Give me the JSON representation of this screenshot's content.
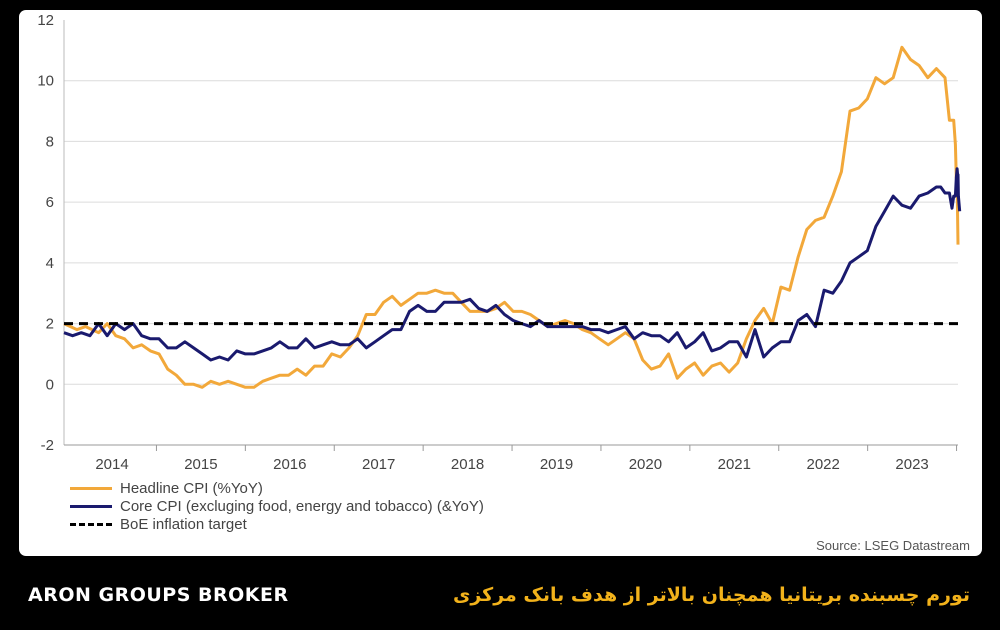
{
  "footer": {
    "brand": "ARON GROUPS BROKER",
    "title": "تورم چسبنده بریتانیا همچنان بالاتر از هدف بانک مرکزی"
  },
  "source": "Source: LSEG Datastream",
  "colors": {
    "headline": "#f2a83a",
    "core": "#1a1a6e",
    "target": "#000000",
    "grid": "#dcdcdc"
  },
  "chart_data": {
    "type": "line",
    "title": "",
    "xlabel": "",
    "ylabel": "",
    "ylim": [
      -2,
      12
    ],
    "yticks": [
      -2,
      0,
      2,
      4,
      6,
      8,
      10,
      12
    ],
    "xlim": [
      2013.6,
      2023.95
    ],
    "xtick_labels": [
      "2014",
      "2015",
      "2016",
      "2017",
      "2018",
      "2019",
      "2020",
      "2021",
      "2022",
      "2023"
    ],
    "grid": "horizontal",
    "legend": "bottom-left",
    "series": [
      {
        "name": "Headline CPI (%YoY)",
        "style": "solid",
        "points": [
          [
            2013.6,
            2.0
          ],
          [
            2013.75,
            1.8
          ],
          [
            2013.85,
            1.9
          ],
          [
            2014.0,
            1.7
          ],
          [
            2014.1,
            2.0
          ],
          [
            2014.2,
            1.6
          ],
          [
            2014.3,
            1.5
          ],
          [
            2014.4,
            1.2
          ],
          [
            2014.5,
            1.3
          ],
          [
            2014.6,
            1.1
          ],
          [
            2014.7,
            1.0
          ],
          [
            2014.8,
            0.5
          ],
          [
            2014.9,
            0.3
          ],
          [
            2015.0,
            0.0
          ],
          [
            2015.1,
            0.0
          ],
          [
            2015.2,
            -0.1
          ],
          [
            2015.3,
            0.1
          ],
          [
            2015.4,
            0.0
          ],
          [
            2015.5,
            0.1
          ],
          [
            2015.6,
            0.0
          ],
          [
            2015.7,
            -0.1
          ],
          [
            2015.8,
            -0.1
          ],
          [
            2015.9,
            0.1
          ],
          [
            2016.0,
            0.2
          ],
          [
            2016.1,
            0.3
          ],
          [
            2016.2,
            0.3
          ],
          [
            2016.3,
            0.5
          ],
          [
            2016.4,
            0.3
          ],
          [
            2016.5,
            0.6
          ],
          [
            2016.6,
            0.6
          ],
          [
            2016.7,
            1.0
          ],
          [
            2016.8,
            0.9
          ],
          [
            2016.9,
            1.2
          ],
          [
            2017.0,
            1.6
          ],
          [
            2017.1,
            2.3
          ],
          [
            2017.2,
            2.3
          ],
          [
            2017.3,
            2.7
          ],
          [
            2017.4,
            2.9
          ],
          [
            2017.5,
            2.6
          ],
          [
            2017.6,
            2.8
          ],
          [
            2017.7,
            3.0
          ],
          [
            2017.8,
            3.0
          ],
          [
            2017.9,
            3.1
          ],
          [
            2018.0,
            3.0
          ],
          [
            2018.1,
            3.0
          ],
          [
            2018.2,
            2.7
          ],
          [
            2018.3,
            2.4
          ],
          [
            2018.5,
            2.4
          ],
          [
            2018.6,
            2.5
          ],
          [
            2018.7,
            2.7
          ],
          [
            2018.8,
            2.4
          ],
          [
            2018.9,
            2.4
          ],
          [
            2019.0,
            2.3
          ],
          [
            2019.1,
            2.1
          ],
          [
            2019.2,
            1.9
          ],
          [
            2019.3,
            2.0
          ],
          [
            2019.4,
            2.1
          ],
          [
            2019.5,
            2.0
          ],
          [
            2019.6,
            1.8
          ],
          [
            2019.7,
            1.7
          ],
          [
            2019.8,
            1.5
          ],
          [
            2019.9,
            1.3
          ],
          [
            2020.0,
            1.5
          ],
          [
            2020.1,
            1.7
          ],
          [
            2020.2,
            1.5
          ],
          [
            2020.3,
            0.8
          ],
          [
            2020.4,
            0.5
          ],
          [
            2020.5,
            0.6
          ],
          [
            2020.6,
            1.0
          ],
          [
            2020.7,
            0.2
          ],
          [
            2020.8,
            0.5
          ],
          [
            2020.9,
            0.7
          ],
          [
            2021.0,
            0.3
          ],
          [
            2021.1,
            0.6
          ],
          [
            2021.2,
            0.7
          ],
          [
            2021.3,
            0.4
          ],
          [
            2021.4,
            0.7
          ],
          [
            2021.5,
            1.5
          ],
          [
            2021.6,
            2.1
          ],
          [
            2021.7,
            2.5
          ],
          [
            2021.8,
            2.0
          ],
          [
            2021.9,
            3.2
          ],
          [
            2022.0,
            3.1
          ],
          [
            2022.1,
            4.2
          ],
          [
            2022.2,
            5.1
          ],
          [
            2022.3,
            5.4
          ],
          [
            2022.4,
            5.5
          ],
          [
            2022.5,
            6.2
          ],
          [
            2022.6,
            7.0
          ],
          [
            2022.7,
            9.0
          ],
          [
            2022.8,
            9.1
          ],
          [
            2022.9,
            9.4
          ],
          [
            2023.0,
            10.1
          ],
          [
            2023.1,
            9.9
          ],
          [
            2023.2,
            10.1
          ],
          [
            2023.3,
            11.1
          ],
          [
            2023.4,
            10.7
          ],
          [
            2023.5,
            10.5
          ],
          [
            2023.6,
            10.1
          ],
          [
            2023.7,
            10.4
          ],
          [
            2023.8,
            10.1
          ],
          [
            2023.85,
            8.7
          ],
          [
            2023.9,
            8.7
          ],
          [
            2023.92,
            7.9
          ],
          [
            2023.93,
            6.8
          ],
          [
            2023.94,
            6.7
          ],
          [
            2023.95,
            4.6
          ]
        ]
      },
      {
        "name": "Core CPI (excluging food, energy and tobacco) (&YoY)",
        "style": "solid",
        "points": [
          [
            2013.6,
            1.7
          ],
          [
            2013.7,
            1.6
          ],
          [
            2013.8,
            1.7
          ],
          [
            2013.9,
            1.6
          ],
          [
            2014.0,
            2.0
          ],
          [
            2014.1,
            1.6
          ],
          [
            2014.2,
            2.0
          ],
          [
            2014.3,
            1.8
          ],
          [
            2014.4,
            2.0
          ],
          [
            2014.5,
            1.6
          ],
          [
            2014.6,
            1.5
          ],
          [
            2014.7,
            1.5
          ],
          [
            2014.8,
            1.2
          ],
          [
            2014.9,
            1.2
          ],
          [
            2015.0,
            1.4
          ],
          [
            2015.1,
            1.2
          ],
          [
            2015.2,
            1.0
          ],
          [
            2015.3,
            0.8
          ],
          [
            2015.4,
            0.9
          ],
          [
            2015.5,
            0.8
          ],
          [
            2015.6,
            1.1
          ],
          [
            2015.7,
            1.0
          ],
          [
            2015.8,
            1.0
          ],
          [
            2015.9,
            1.1
          ],
          [
            2016.0,
            1.2
          ],
          [
            2016.1,
            1.4
          ],
          [
            2016.2,
            1.2
          ],
          [
            2016.3,
            1.2
          ],
          [
            2016.4,
            1.5
          ],
          [
            2016.5,
            1.2
          ],
          [
            2016.6,
            1.3
          ],
          [
            2016.7,
            1.4
          ],
          [
            2016.8,
            1.3
          ],
          [
            2016.9,
            1.3
          ],
          [
            2017.0,
            1.5
          ],
          [
            2017.1,
            1.2
          ],
          [
            2017.2,
            1.4
          ],
          [
            2017.3,
            1.6
          ],
          [
            2017.4,
            1.8
          ],
          [
            2017.5,
            1.8
          ],
          [
            2017.6,
            2.4
          ],
          [
            2017.7,
            2.6
          ],
          [
            2017.8,
            2.4
          ],
          [
            2017.9,
            2.4
          ],
          [
            2018.0,
            2.7
          ],
          [
            2018.1,
            2.7
          ],
          [
            2018.2,
            2.7
          ],
          [
            2018.3,
            2.8
          ],
          [
            2018.4,
            2.5
          ],
          [
            2018.5,
            2.4
          ],
          [
            2018.6,
            2.6
          ],
          [
            2018.7,
            2.3
          ],
          [
            2018.8,
            2.1
          ],
          [
            2018.9,
            2.0
          ],
          [
            2019.0,
            1.9
          ],
          [
            2019.1,
            2.1
          ],
          [
            2019.2,
            1.9
          ],
          [
            2019.3,
            1.9
          ],
          [
            2019.4,
            1.9
          ],
          [
            2019.5,
            1.9
          ],
          [
            2019.6,
            1.9
          ],
          [
            2019.7,
            1.8
          ],
          [
            2019.8,
            1.8
          ],
          [
            2019.9,
            1.7
          ],
          [
            2020.0,
            1.8
          ],
          [
            2020.1,
            1.9
          ],
          [
            2020.2,
            1.5
          ],
          [
            2020.3,
            1.7
          ],
          [
            2020.4,
            1.6
          ],
          [
            2020.5,
            1.6
          ],
          [
            2020.6,
            1.4
          ],
          [
            2020.7,
            1.7
          ],
          [
            2020.8,
            1.2
          ],
          [
            2020.9,
            1.4
          ],
          [
            2021.0,
            1.7
          ],
          [
            2021.1,
            1.1
          ],
          [
            2021.2,
            1.2
          ],
          [
            2021.3,
            1.4
          ],
          [
            2021.4,
            1.4
          ],
          [
            2021.5,
            0.9
          ],
          [
            2021.6,
            1.8
          ],
          [
            2021.7,
            0.9
          ],
          [
            2021.8,
            1.2
          ],
          [
            2021.9,
            1.4
          ],
          [
            2022.0,
            1.4
          ],
          [
            2022.1,
            2.1
          ],
          [
            2022.2,
            2.3
          ],
          [
            2022.3,
            1.9
          ],
          [
            2022.4,
            3.1
          ],
          [
            2022.5,
            3.0
          ],
          [
            2022.6,
            3.4
          ],
          [
            2022.7,
            4.0
          ],
          [
            2022.8,
            4.2
          ],
          [
            2022.9,
            4.4
          ],
          [
            2023.0,
            5.2
          ],
          [
            2023.1,
            5.7
          ],
          [
            2023.2,
            6.2
          ],
          [
            2023.3,
            5.9
          ],
          [
            2023.4,
            5.8
          ],
          [
            2023.5,
            6.2
          ],
          [
            2023.6,
            6.3
          ],
          [
            2023.7,
            6.5
          ],
          [
            2023.75,
            6.5
          ],
          [
            2023.8,
            6.3
          ],
          [
            2023.85,
            6.3
          ],
          [
            2023.88,
            5.8
          ],
          [
            2023.9,
            6.2
          ],
          [
            2023.92,
            6.2
          ],
          [
            2023.93,
            6.8
          ],
          [
            2023.94,
            7.1
          ],
          [
            2023.945,
            6.9
          ],
          [
            2023.95,
            6.9
          ],
          [
            2023.955,
            6.2
          ],
          [
            2023.96,
            6.0
          ],
          [
            2023.97,
            5.7
          ]
        ]
      },
      {
        "name": "BoE inflation target",
        "style": "dashed",
        "points": [
          [
            2013.6,
            2.0
          ],
          [
            2023.95,
            2.0
          ]
        ]
      }
    ]
  }
}
